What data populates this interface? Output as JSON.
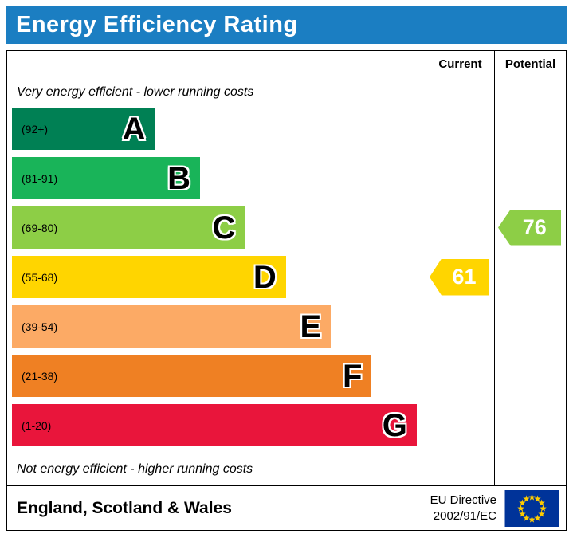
{
  "title": "Energy Efficiency Rating",
  "columns": {
    "current": "Current",
    "potential": "Potential"
  },
  "top_note": "Very energy efficient - lower running costs",
  "bottom_note": "Not energy efficient - higher running costs",
  "footer": {
    "region": "England, Scotland & Wales",
    "directive_line1": "EU Directive",
    "directive_line2": "2002/91/EC",
    "eu_flag": {
      "bg": "#003399",
      "stars": "#ffcc00"
    }
  },
  "banner_color": "#1b7ec2",
  "chart_data": {
    "type": "bar",
    "title": "Energy Efficiency Rating",
    "xlabel": "",
    "ylabel": "",
    "legend_position": "none",
    "bands": [
      {
        "letter": "A",
        "range": "(92+)",
        "color": "#008054",
        "width_pct": 35
      },
      {
        "letter": "B",
        "range": "(81-91)",
        "color": "#19b459",
        "width_pct": 46
      },
      {
        "letter": "C",
        "range": "(69-80)",
        "color": "#8dce46",
        "width_pct": 57
      },
      {
        "letter": "D",
        "range": "(55-68)",
        "color": "#ffd500",
        "width_pct": 67
      },
      {
        "letter": "E",
        "range": "(39-54)",
        "color": "#fcaa65",
        "width_pct": 78
      },
      {
        "letter": "F",
        "range": "(21-38)",
        "color": "#ef8023",
        "width_pct": 88
      },
      {
        "letter": "G",
        "range": "(1-20)",
        "color": "#e9153b",
        "width_pct": 99
      }
    ],
    "current": {
      "value": 61,
      "band": "D",
      "color": "#ffd500"
    },
    "potential": {
      "value": 76,
      "band": "C",
      "color": "#8dce46"
    }
  }
}
